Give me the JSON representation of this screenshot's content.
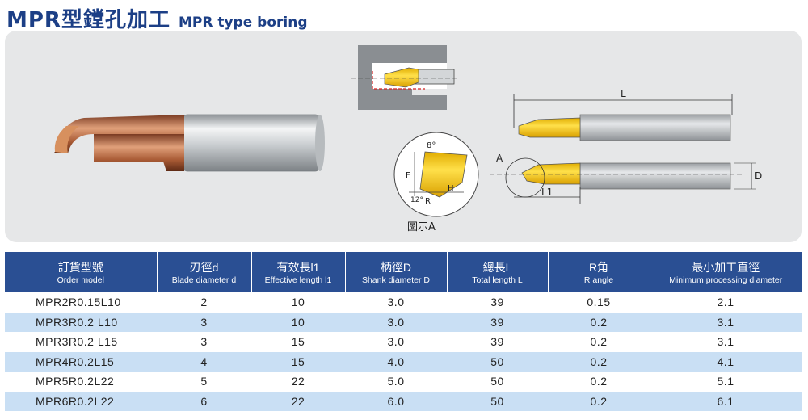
{
  "header": {
    "title_cn": "MPR型鏜孔加工",
    "title_en": "MPR type boring"
  },
  "figure": {
    "caption": "圖示A",
    "labels": {
      "L": "L",
      "L1": "L1",
      "D": "D",
      "A": "A",
      "angle": "8°",
      "F": "F",
      "H": "H",
      "R": "R",
      "angle2": "12°"
    },
    "colors": {
      "insert_gold": "#f2c81b",
      "tool_copper": "#b0653e",
      "shank_silver": "#cfd3d6",
      "header_blue": "#2a4f93",
      "row_stripe": "#c9dff4"
    }
  },
  "table": {
    "columns": [
      {
        "cn": "訂貨型號",
        "en": "Order model"
      },
      {
        "cn": "刃徑d",
        "en": "Blade diameter d"
      },
      {
        "cn": "有效長l1",
        "en": "Effective length l1"
      },
      {
        "cn": "柄徑D",
        "en": "Shank diameter D"
      },
      {
        "cn": "總長L",
        "en": "Total length L"
      },
      {
        "cn": "R角",
        "en": "R angle"
      },
      {
        "cn": "最小加工直徑",
        "en": "Minimum processing diameter"
      }
    ],
    "rows": [
      [
        "MPR2R0.15L10",
        "2",
        "10",
        "3.0",
        "39",
        "0.15",
        "2.1"
      ],
      [
        "MPR3R0.2 L10",
        "3",
        "10",
        "3.0",
        "39",
        "0.2",
        "3.1"
      ],
      [
        "MPR3R0.2 L15",
        "3",
        "15",
        "3.0",
        "39",
        "0.2",
        "3.1"
      ],
      [
        "MPR4R0.2L15",
        "4",
        "15",
        "4.0",
        "50",
        "0.2",
        "4.1"
      ],
      [
        "MPR5R0.2L22",
        "5",
        "22",
        "5.0",
        "50",
        "0.2",
        "5.1"
      ],
      [
        "MPR6R0.2L22",
        "6",
        "22",
        "6.0",
        "50",
        "0.2",
        "6.1"
      ]
    ]
  }
}
